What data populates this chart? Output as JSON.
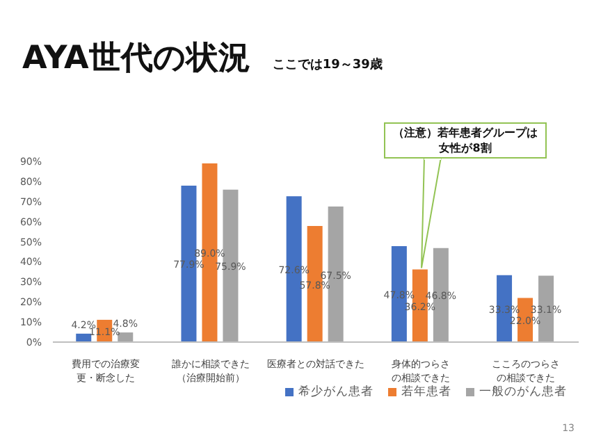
{
  "chart_data": {
    "type": "bar",
    "title": "AYA世代の状況",
    "subtitle": "ここでは19～39歳",
    "categories": [
      "費用での治療変更・断念した",
      "誰かに相談できた（治療開始前）",
      "医療者との対話できた",
      "身体的つらさの相談できた",
      "こころのつらさの相談できた"
    ],
    "series": [
      {
        "name": "希少がん患者",
        "color": "#4472c4",
        "values": [
          4.2,
          77.9,
          72.6,
          47.8,
          33.3
        ],
        "value_labels": [
          "4.2%",
          "77.9%",
          "72.6%",
          "47.8%",
          "33.3%"
        ]
      },
      {
        "name": "若年患者",
        "color": "#ed7d31",
        "values": [
          11.1,
          89.0,
          57.8,
          36.2,
          22.0
        ],
        "value_labels": [
          "11.1%",
          "89.0%",
          "57.8%",
          "36.2%",
          "22.0%"
        ]
      },
      {
        "name": "一般のがん患者",
        "color": "#a5a5a5",
        "values": [
          4.8,
          75.9,
          67.5,
          46.8,
          33.1
        ],
        "value_labels": [
          "4.8%",
          "75.9%",
          "67.5%",
          "46.8%",
          "33.1%"
        ]
      }
    ],
    "ylim": [
      0,
      90
    ],
    "yticks": [
      {
        "value": 0,
        "label": "0%"
      },
      {
        "value": 10,
        "label": "10%"
      },
      {
        "value": 20,
        "label": "20%"
      },
      {
        "value": 30,
        "label": "30%"
      },
      {
        "value": 40,
        "label": "40%"
      },
      {
        "value": 50,
        "label": "50%"
      },
      {
        "value": 60,
        "label": "60%"
      },
      {
        "value": 70,
        "label": "70%"
      },
      {
        "value": 80,
        "label": "80%"
      },
      {
        "value": 90,
        "label": "90%"
      }
    ],
    "grid": false,
    "legend": "bottom",
    "annotations": [
      {
        "text": "（注意）若年患者グループは女性が8割",
        "x": "身体的つらさの相談できた",
        "y": 36.2
      },
      "13"
    ]
  }
}
